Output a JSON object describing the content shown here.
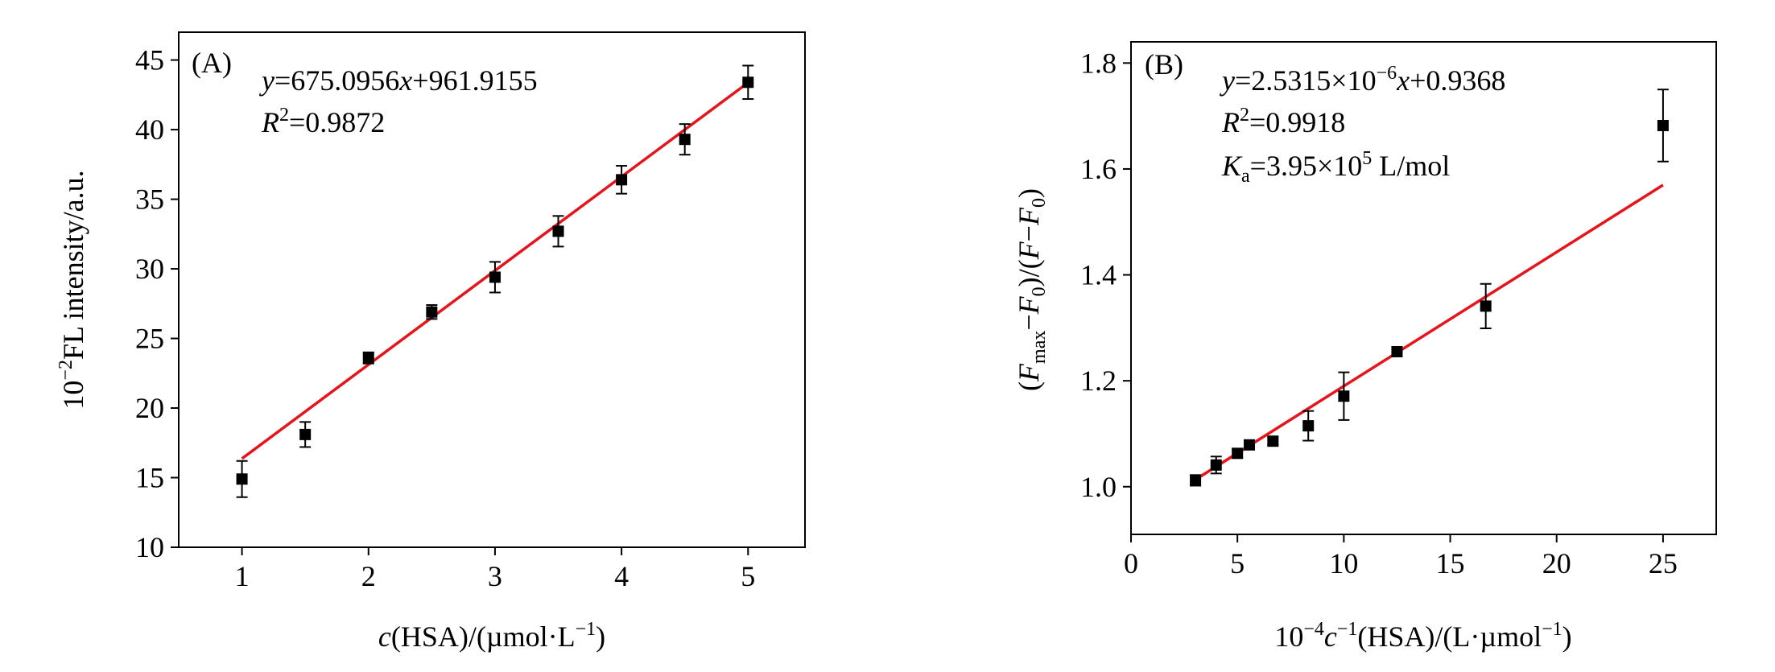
{
  "chart_data": [
    {
      "type": "scatter",
      "panel_label": "(A)",
      "equation": "y=675.0956x+961.9155",
      "r2_value": "=0.9872",
      "xlabel": "c(HSA)/(µmol·L⁻¹)",
      "ylabel": "10⁻²FL intensity/a.u.",
      "xlim": [
        0.5,
        5.45
      ],
      "ylim": [
        10,
        47
      ],
      "xticks": [
        1,
        2,
        3,
        4,
        5
      ],
      "yticks": [
        10,
        15,
        20,
        25,
        30,
        35,
        40,
        45
      ],
      "grid": false,
      "series": [
        {
          "x": [
            1,
            1.5,
            2,
            2.5,
            3,
            3.5,
            4,
            4.5,
            5
          ],
          "y": [
            14.9,
            18.1,
            23.6,
            26.9,
            29.4,
            32.7,
            36.4,
            39.3,
            43.4
          ],
          "err": [
            1.3,
            0.9,
            0.4,
            0.5,
            1.1,
            1.1,
            1.0,
            1.1,
            1.2
          ]
        }
      ],
      "fit_line": {
        "slope": 6.750956,
        "intercept": 9.619155,
        "x_range": [
          1,
          5
        ]
      },
      "colors": {
        "points": "#000000",
        "fit": "#e8141b"
      }
    },
    {
      "type": "scatter",
      "panel_label": "(B)",
      "equation": "y=2.5315×10⁻⁶x+0.9368",
      "r2_value": "=0.9918",
      "ka_value": "=3.95×10⁵ L/mol",
      "xlabel": "10⁻⁴c⁻¹(HSA)/(L·µmol⁻¹)",
      "ylabel": "(Fmax−F0)/(F−F0)",
      "xlim": [
        0,
        27.5
      ],
      "ylim": [
        0.91,
        1.84
      ],
      "xticks": [
        0,
        5,
        10,
        15,
        20,
        25
      ],
      "yticks": [
        1.0,
        1.2,
        1.4,
        1.6,
        1.8
      ],
      "grid": false,
      "series": [
        {
          "x": [
            3.03,
            4.0,
            5.0,
            5.56,
            6.67,
            8.33,
            10.0,
            12.5,
            16.67,
            25.0
          ],
          "y": [
            1.012,
            1.041,
            1.063,
            1.079,
            1.086,
            1.115,
            1.171,
            1.255,
            1.341,
            1.682
          ],
          "err": [
            0.01,
            0.016,
            0.008,
            0.006,
            0.007,
            0.028,
            0.045,
            0.006,
            0.042,
            0.068
          ]
        }
      ],
      "fit_line": {
        "slope": 0.025315,
        "intercept": 0.9368,
        "x_range": [
          3.03,
          25.0
        ]
      },
      "colors": {
        "points": "#000000",
        "fit": "#e8141b"
      }
    }
  ]
}
